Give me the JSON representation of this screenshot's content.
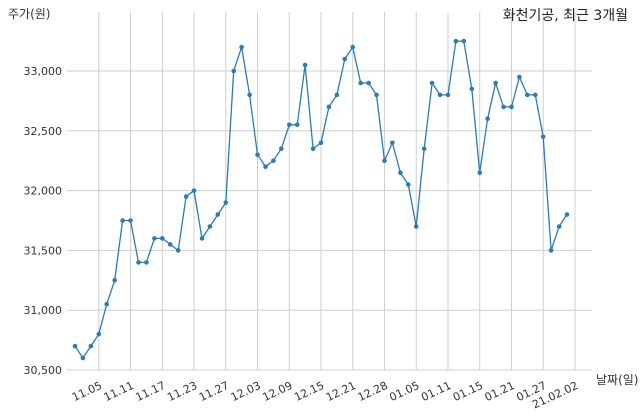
{
  "chart_data": {
    "type": "line",
    "title": "화천기공, 최근 3개월",
    "xlabel": "날짜(일)",
    "ylabel": "주가(원)",
    "ylim": [
      30500,
      33300
    ],
    "y_ticks": [
      30500,
      31000,
      31500,
      32000,
      32500,
      33000
    ],
    "y_tick_labels": [
      "30,500",
      "31,000",
      "31,500",
      "32,000",
      "32,500",
      "33,000"
    ],
    "x_tick_labels": [
      "11.05",
      "11.11",
      "11.17",
      "11.23",
      "11.27",
      "12.03",
      "12.09",
      "12.15",
      "12.21",
      "12.28",
      "01.05",
      "01.11",
      "01.15",
      "01.21",
      "01.27",
      "21.02.02"
    ],
    "x_tick_indices": [
      3,
      7,
      11,
      15,
      19,
      23,
      27,
      31,
      35,
      39,
      43,
      47,
      51,
      55,
      59,
      63
    ],
    "grid": true,
    "series": [
      {
        "color": "#2e7bb0",
        "values": [
          30700,
          30600,
          30700,
          30800,
          31050,
          31250,
          31750,
          31750,
          31400,
          31400,
          31600,
          31600,
          31550,
          31500,
          31950,
          32000,
          31600,
          31700,
          31800,
          31900,
          33000,
          33200,
          32800,
          32300,
          32200,
          32250,
          32350,
          32550,
          32550,
          33050,
          32350,
          32400,
          32700,
          32800,
          33100,
          33200,
          32900,
          32900,
          32800,
          32250,
          32400,
          32150,
          32050,
          31700,
          32350,
          32900,
          32800,
          32800,
          33250,
          33250,
          32850,
          32150,
          32600,
          32900,
          32700,
          32700,
          32950,
          32800,
          32800,
          32450,
          31500,
          31700,
          31800
        ]
      }
    ]
  }
}
